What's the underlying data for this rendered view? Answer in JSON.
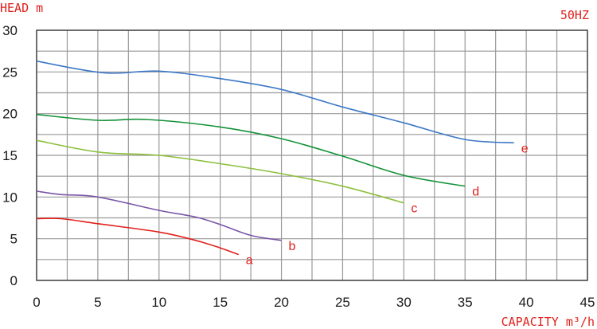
{
  "chart_data": {
    "type": "line",
    "title": "",
    "ylabel": "HEAD m",
    "xlabel": "CAPACITY m³/h",
    "frequency_label": "50HZ",
    "xlim": [
      0,
      45
    ],
    "ylim": [
      0,
      30
    ],
    "xticks": [
      0,
      5,
      10,
      15,
      20,
      25,
      30,
      35,
      40,
      45
    ],
    "yticks": [
      0,
      5,
      10,
      15,
      20,
      25,
      30
    ],
    "grid": true,
    "grid_color": "#999999",
    "series": [
      {
        "name": "a",
        "color": "#e0201b",
        "points": [
          [
            0,
            7.4
          ],
          [
            2,
            7.4
          ],
          [
            5,
            6.8
          ],
          [
            10,
            5.8
          ],
          [
            13,
            4.8
          ],
          [
            15,
            3.9
          ],
          [
            16.5,
            3.1
          ]
        ]
      },
      {
        "name": "b",
        "color": "#7a56a6",
        "points": [
          [
            0,
            10.7
          ],
          [
            2,
            10.3
          ],
          [
            5,
            10.0
          ],
          [
            10,
            8.4
          ],
          [
            13,
            7.6
          ],
          [
            15,
            6.7
          ],
          [
            17.5,
            5.4
          ],
          [
            20,
            4.8
          ]
        ]
      },
      {
        "name": "c",
        "color": "#8dbf3d",
        "points": [
          [
            0,
            16.8
          ],
          [
            5,
            15.4
          ],
          [
            10,
            15.0
          ],
          [
            15,
            14.0
          ],
          [
            20,
            12.8
          ],
          [
            25,
            11.3
          ],
          [
            30,
            9.3
          ]
        ]
      },
      {
        "name": "d",
        "color": "#149238",
        "points": [
          [
            0,
            19.9
          ],
          [
            5,
            19.2
          ],
          [
            9,
            19.3
          ],
          [
            15,
            18.4
          ],
          [
            20,
            17.0
          ],
          [
            25,
            14.9
          ],
          [
            30,
            12.6
          ],
          [
            35,
            11.3
          ]
        ]
      },
      {
        "name": "e",
        "color": "#3d78c6",
        "points": [
          [
            0,
            26.3
          ],
          [
            5.5,
            24.9
          ],
          [
            10,
            25.1
          ],
          [
            15,
            24.2
          ],
          [
            20,
            22.9
          ],
          [
            25,
            20.8
          ],
          [
            30,
            18.9
          ],
          [
            35,
            16.9
          ],
          [
            39,
            16.5
          ]
        ]
      }
    ]
  }
}
